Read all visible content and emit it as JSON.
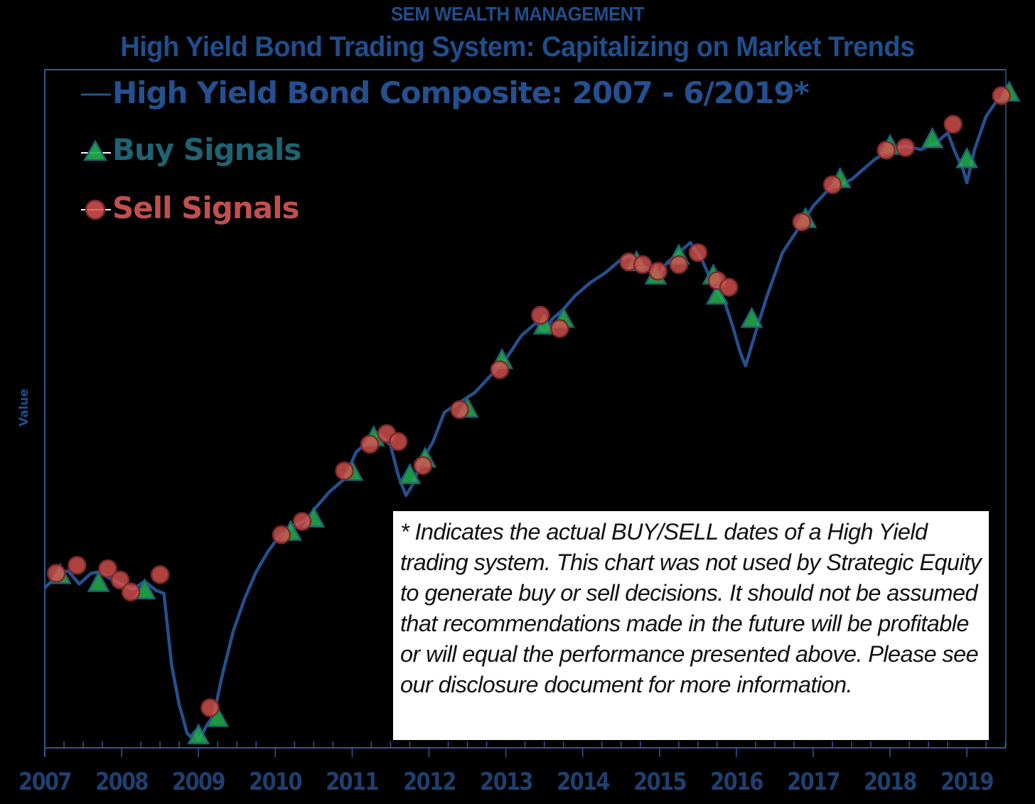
{
  "header": {
    "brand": "SEM WEALTH MANAGEMENT",
    "title": "High Yield Bond Trading System: Capitalizing on Market Trends"
  },
  "legend": {
    "series_label": "High Yield Bond Composite: 2007 - 6/2019*",
    "buy_label": "Buy Signals",
    "sell_label": "Sell Signals"
  },
  "axes": {
    "ylabel": "Value",
    "xticks": [
      "2007",
      "2008",
      "2009",
      "2010",
      "2011",
      "2012",
      "2013",
      "2014",
      "2015",
      "2016",
      "2017",
      "2018",
      "2019"
    ]
  },
  "note": {
    "text": "* Indicates the actual BUY/SELL dates of a High Yield trading system.  This chart was not used by Strategic Equity to generate buy or sell decisions.  It should not be assumed that recommendations made in the future will be profitable or will equal the performance presented above.  Please see our disclosure document for more information."
  },
  "colors": {
    "background": "#000000",
    "line": "#25508f",
    "axis": "#2e5a94",
    "buy_fill": "#22b14c",
    "buy_stroke": "#1f6373",
    "sell_fill": "#d9534f",
    "sell_stroke": "#7a2a2a",
    "title": "#1f4e8c"
  },
  "chart_data": {
    "type": "line",
    "title": "High Yield Bond Trading System: Capitalizing on Market Trends",
    "subtitle": "SEM WEALTH MANAGEMENT",
    "xlabel": "",
    "ylabel": "Value",
    "x_range": [
      2007.0,
      2019.5
    ],
    "y_range_note": "no numeric y ticks shown; values are relative (0 = plot bottom, 100 = plot top)",
    "ylim": [
      0,
      100
    ],
    "grid": false,
    "legend_position": "top-left inside plot",
    "series": [
      {
        "name": "High Yield Bond Composite: 2007 - 6/2019*",
        "x": [
          2007.0,
          2007.15,
          2007.3,
          2007.45,
          2007.6,
          2007.7,
          2007.85,
          2008.0,
          2008.15,
          2008.3,
          2008.45,
          2008.55,
          2008.65,
          2008.75,
          2008.8,
          2008.85,
          2008.9,
          2008.95,
          2009.0,
          2009.1,
          2009.2,
          2009.3,
          2009.45,
          2009.6,
          2009.75,
          2009.9,
          2010.05,
          2010.25,
          2010.4,
          2010.55,
          2010.7,
          2010.9,
          2011.05,
          2011.2,
          2011.35,
          2011.5,
          2011.6,
          2011.7,
          2011.78,
          2011.9,
          2012.05,
          2012.2,
          2012.4,
          2012.6,
          2012.8,
          2013.0,
          2013.2,
          2013.4,
          2013.5,
          2013.6,
          2013.75,
          2013.9,
          2014.1,
          2014.3,
          2014.5,
          2014.62,
          2014.75,
          2014.85,
          2014.95,
          2015.1,
          2015.25,
          2015.4,
          2015.55,
          2015.7,
          2015.85,
          2015.95,
          2016.05,
          2016.12,
          2016.25,
          2016.4,
          2016.6,
          2016.8,
          2017.0,
          2017.2,
          2017.5,
          2017.8,
          2018.0,
          2018.2,
          2018.4,
          2018.6,
          2018.75,
          2018.85,
          2018.95,
          2019.0,
          2019.1,
          2019.25,
          2019.4
        ],
        "y": [
          23.6,
          25.4,
          26.2,
          24.2,
          25.8,
          26.0,
          25.0,
          24.2,
          23.4,
          24.6,
          23.2,
          22.8,
          12.0,
          6.0,
          4.0,
          1.8,
          1.2,
          2.0,
          0.6,
          2.8,
          4.5,
          10.0,
          17.0,
          22.0,
          26.0,
          29.0,
          31.4,
          33.0,
          33.8,
          36.0,
          38.0,
          40.0,
          44.0,
          45.5,
          46.8,
          45.0,
          40.5,
          37.5,
          39.0,
          42.5,
          45.5,
          50.0,
          51.5,
          53.0,
          55.5,
          58.0,
          61.5,
          63.5,
          62.0,
          64.0,
          65.5,
          67.5,
          69.5,
          71.0,
          73.0,
          73.5,
          72.5,
          71.5,
          70.0,
          72.5,
          74.0,
          75.5,
          73.0,
          69.0,
          66.5,
          63.0,
          59.0,
          57.0,
          62.0,
          67.5,
          74.0,
          77.5,
          81.0,
          83.5,
          85.0,
          88.0,
          89.5,
          90.0,
          89.5,
          90.5,
          92.0,
          89.0,
          86.5,
          84.5,
          89.5,
          94.5,
          97.0
        ]
      }
    ],
    "buy_signals": {
      "name": "Buy Signals",
      "x": [
        2007.2,
        2007.7,
        2008.3,
        2009.0,
        2009.25,
        2010.2,
        2010.5,
        2011.0,
        2011.28,
        2011.75,
        2011.95,
        2012.5,
        2012.95,
        2013.5,
        2013.75,
        2014.7,
        2014.95,
        2015.25,
        2015.7,
        2015.75,
        2016.2,
        2016.9,
        2017.35,
        2018.0,
        2018.55,
        2019.0,
        2019.55
      ],
      "y": [
        25.5,
        24.3,
        23.2,
        1.4,
        4.0,
        32.0,
        34.0,
        41.0,
        46.2,
        40.5,
        43.0,
        50.5,
        57.8,
        63.0,
        64.0,
        72.5,
        70.5,
        73.5,
        70.5,
        67.5,
        64.0,
        79.0,
        85.0,
        90.0,
        91.0,
        88.0,
        98.0
      ]
    },
    "sell_signals": {
      "name": "Sell Signals",
      "x": [
        2007.15,
        2007.42,
        2007.82,
        2007.98,
        2008.12,
        2008.5,
        2009.15,
        2010.08,
        2010.35,
        2010.9,
        2011.23,
        2011.45,
        2011.6,
        2011.92,
        2012.4,
        2012.92,
        2013.45,
        2013.7,
        2014.6,
        2014.78,
        2014.98,
        2015.25,
        2015.5,
        2015.75,
        2015.9,
        2016.85,
        2017.25,
        2017.95,
        2018.2,
        2018.82,
        2019.45
      ],
      "y": [
        25.8,
        27.0,
        26.5,
        24.8,
        23.0,
        25.6,
        5.6,
        31.6,
        33.6,
        41.2,
        45.2,
        46.8,
        45.6,
        42.0,
        50.4,
        56.4,
        64.6,
        62.6,
        72.6,
        72.2,
        71.2,
        72.2,
        74.0,
        69.8,
        68.8,
        78.6,
        84.2,
        89.4,
        89.8,
        93.3,
        97.6
      ]
    }
  }
}
